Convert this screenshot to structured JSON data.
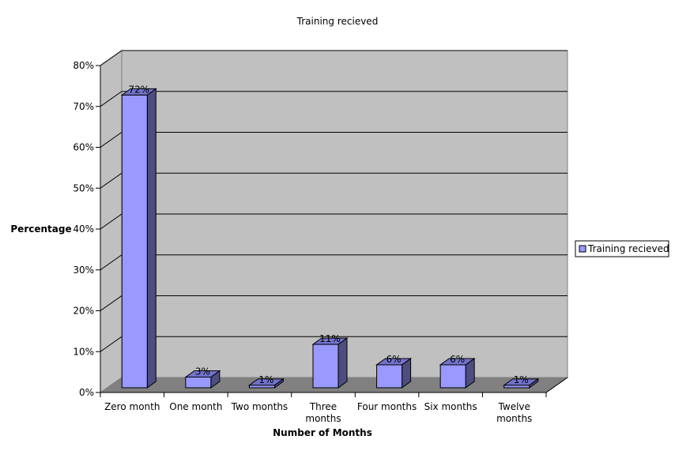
{
  "chart_data": {
    "type": "bar",
    "title": "Training recieved",
    "xlabel": "Number of Months",
    "ylabel": "Percentage",
    "categories": [
      [
        "Zero month"
      ],
      [
        "One month"
      ],
      [
        "Two months"
      ],
      [
        "Three",
        "months"
      ],
      [
        "Four months"
      ],
      [
        "Six months"
      ],
      [
        "Twelve",
        "months"
      ]
    ],
    "series": [
      {
        "name": "Training recieved",
        "values": [
          72,
          3,
          1,
          11,
          6,
          6,
          1
        ],
        "labels": [
          "72%",
          "3%",
          "1%",
          "11%",
          "6%",
          "6%",
          "1%"
        ]
      }
    ],
    "y_ticks": [
      "0%",
      "10%",
      "20%",
      "30%",
      "40%",
      "50%",
      "60%",
      "70%",
      "80%"
    ],
    "ylim": [
      0,
      80
    ],
    "grid": true,
    "legend_position": "right",
    "colors": {
      "bar_front": "#9999ff",
      "bar_side": "#4d4d80",
      "bar_top": "#7272cc",
      "wall": "#c0c0c0",
      "floor": "#808080"
    }
  }
}
